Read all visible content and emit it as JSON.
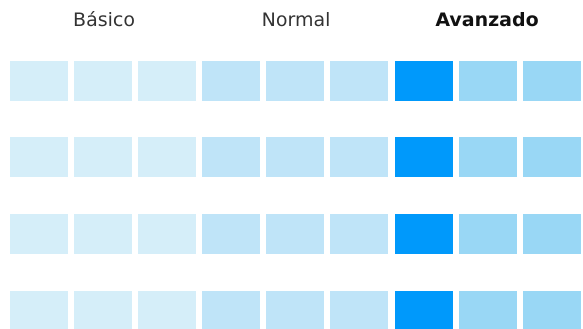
{
  "levels": {
    "basic_label": "Básico",
    "normal_label": "Normal",
    "advanced_label": "Avanzado",
    "selected": "Avanzado"
  },
  "grid": {
    "rows": 4,
    "columns_per_level": 3,
    "selected_column_index": 6
  },
  "colors": {
    "basic": "#d5eef9",
    "normal": "#bfe4f8",
    "advanced_selected": "#0099fb",
    "advanced": "#99d7f5"
  }
}
